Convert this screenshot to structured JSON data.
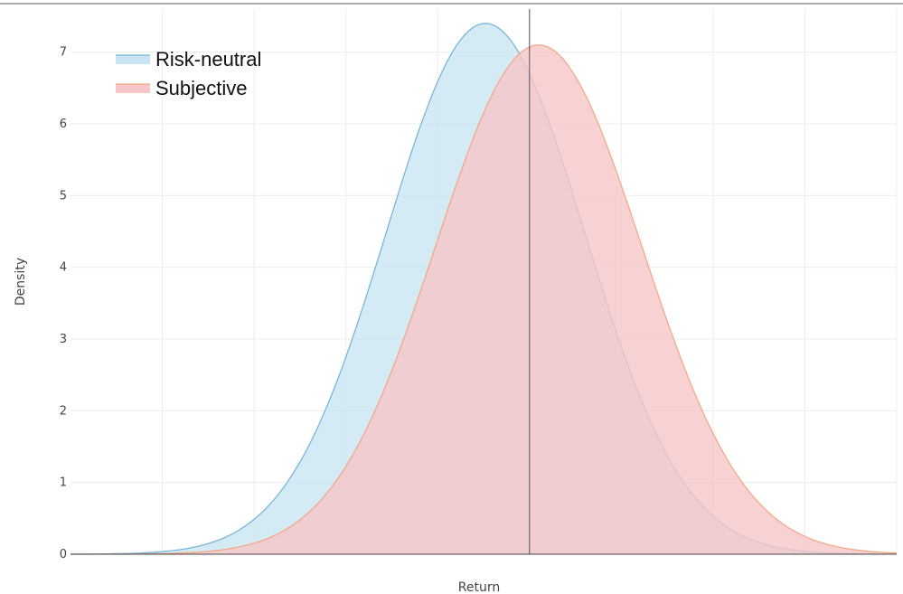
{
  "chart_data": {
    "type": "area",
    "xlabel": "Return",
    "ylabel": "Density",
    "ylim": [
      0,
      7.6
    ],
    "xlim": [
      -0.25,
      0.2
    ],
    "y_ticks": [
      "0",
      "1",
      "2",
      "3",
      "4",
      "5",
      "6",
      "7"
    ],
    "grid": true,
    "legend_position": "top-left",
    "vertical_line_x": 0,
    "series": [
      {
        "name": "Risk-neutral",
        "distribution": "normal",
        "mean": -0.024,
        "sd": 0.054,
        "peak_density": 7.4,
        "line_color": "#6fb3d8",
        "fill_color": "#c9e5f2"
      },
      {
        "name": "Subjective",
        "distribution": "normal",
        "mean": 0.005,
        "sd": 0.056,
        "peak_density": 7.1,
        "line_color": "#f4a582",
        "fill_color": "#f6c6c8"
      }
    ]
  }
}
